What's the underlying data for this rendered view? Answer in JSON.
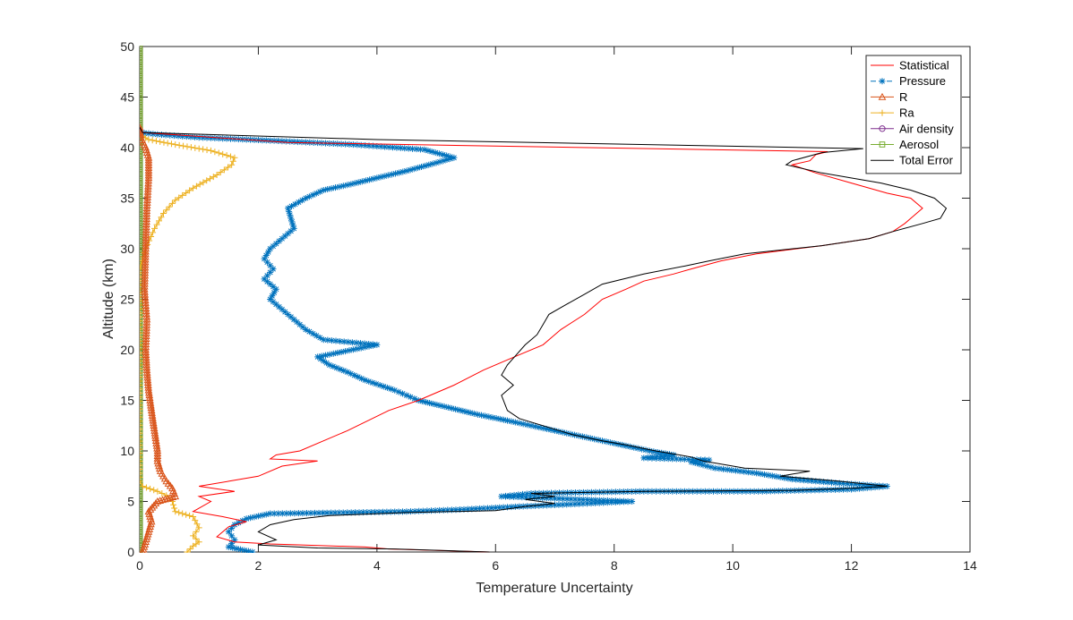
{
  "chart_data": {
    "type": "line",
    "xlabel": "Temperature Uncertainty",
    "ylabel": "Altitude (km)",
    "xlim": [
      0,
      14
    ],
    "ylim": [
      0,
      50
    ],
    "xticks": [
      "0",
      "2",
      "4",
      "6",
      "8",
      "10",
      "12",
      "14"
    ],
    "yticks": [
      "0",
      "5",
      "10",
      "15",
      "20",
      "25",
      "30",
      "35",
      "40",
      "45",
      "50"
    ],
    "grid": false,
    "legend_position": "top-right",
    "series": [
      {
        "name": "Statistical",
        "color": "#ff0000",
        "marker": "none",
        "dash": "solid",
        "points": [
          [
            5.9,
            0
          ],
          [
            4.2,
            0.3
          ],
          [
            3.8,
            0.5
          ],
          [
            2.2,
            0.8
          ],
          [
            1.6,
            1.0
          ],
          [
            1.3,
            1.5
          ],
          [
            1.5,
            2.5
          ],
          [
            1.8,
            3
          ],
          [
            1.4,
            3.5
          ],
          [
            0.9,
            4
          ],
          [
            1.2,
            5
          ],
          [
            1.0,
            5.5
          ],
          [
            1.6,
            6
          ],
          [
            1.0,
            6.5
          ],
          [
            1.5,
            7
          ],
          [
            2.0,
            7.5
          ],
          [
            2.4,
            8.5
          ],
          [
            3.0,
            9
          ],
          [
            2.2,
            9.2
          ],
          [
            2.3,
            9.6
          ],
          [
            2.7,
            10
          ],
          [
            3.1,
            11
          ],
          [
            3.5,
            12
          ],
          [
            4.2,
            14
          ],
          [
            4.7,
            15
          ],
          [
            5.3,
            16.5
          ],
          [
            5.8,
            18
          ],
          [
            6.4,
            19.5
          ],
          [
            6.8,
            20.5
          ],
          [
            7.1,
            22
          ],
          [
            7.5,
            23.5
          ],
          [
            7.8,
            25
          ],
          [
            8.2,
            26
          ],
          [
            8.5,
            26.8
          ],
          [
            9.0,
            27.5
          ],
          [
            9.3,
            28
          ],
          [
            9.8,
            28.8
          ],
          [
            10.4,
            29.5
          ],
          [
            11.5,
            30.3
          ],
          [
            12.3,
            31
          ],
          [
            12.7,
            31.7
          ],
          [
            12.9,
            32.5
          ],
          [
            13.0,
            33
          ],
          [
            13.2,
            34
          ],
          [
            13.0,
            35
          ],
          [
            12.6,
            35.5
          ],
          [
            12.0,
            36.5
          ],
          [
            11.4,
            37.5
          ],
          [
            11.0,
            38.3
          ],
          [
            11.3,
            38.7
          ],
          [
            11.4,
            39.3
          ],
          [
            11.6,
            39.6
          ],
          [
            2.5,
            40.5
          ],
          [
            0.05,
            41.5
          ],
          [
            0,
            42
          ]
        ]
      },
      {
        "name": "Pressure",
        "color": "#0072bd",
        "marker": "*",
        "dash": "dashed",
        "points": [
          [
            1.9,
            0
          ],
          [
            1.5,
            0.5
          ],
          [
            1.6,
            1.2
          ],
          [
            1.5,
            2
          ],
          [
            1.6,
            2.7
          ],
          [
            1.8,
            3.3
          ],
          [
            2.2,
            3.8
          ],
          [
            3.5,
            3.9
          ],
          [
            4.5,
            4
          ],
          [
            5.4,
            4.2
          ],
          [
            6.4,
            4.5
          ],
          [
            7.2,
            4.7
          ],
          [
            8.3,
            5
          ],
          [
            7.0,
            5.3
          ],
          [
            6.1,
            5.5
          ],
          [
            6.6,
            5.8
          ],
          [
            8.5,
            6
          ],
          [
            10.5,
            6
          ],
          [
            12.0,
            6.2
          ],
          [
            12.6,
            6.5
          ],
          [
            11.8,
            6.8
          ],
          [
            11.0,
            7.2
          ],
          [
            10.4,
            7.8
          ],
          [
            9.7,
            8.3
          ],
          [
            9.3,
            8.9
          ],
          [
            9.6,
            9.1
          ],
          [
            8.5,
            9.3
          ],
          [
            9.0,
            9.6
          ],
          [
            8.6,
            10
          ],
          [
            8.2,
            10.5
          ],
          [
            7.8,
            11
          ],
          [
            7.4,
            11.5
          ],
          [
            7.0,
            12
          ],
          [
            6.6,
            12.5
          ],
          [
            6.2,
            13
          ],
          [
            5.7,
            13.6
          ],
          [
            5.2,
            14.3
          ],
          [
            4.7,
            15
          ],
          [
            4.3,
            16
          ],
          [
            3.8,
            17
          ],
          [
            3.5,
            17.8
          ],
          [
            3.2,
            18.5
          ],
          [
            3.0,
            19.3
          ],
          [
            4.0,
            20.5
          ],
          [
            3.1,
            21
          ],
          [
            2.8,
            22
          ],
          [
            2.6,
            23
          ],
          [
            2.4,
            24
          ],
          [
            2.2,
            25
          ],
          [
            2.3,
            26
          ],
          [
            2.1,
            27
          ],
          [
            2.25,
            28
          ],
          [
            2.1,
            29
          ],
          [
            2.2,
            30
          ],
          [
            2.4,
            31
          ],
          [
            2.6,
            32
          ],
          [
            2.55,
            33
          ],
          [
            2.5,
            34
          ],
          [
            2.8,
            35
          ],
          [
            3.1,
            35.8
          ],
          [
            3.5,
            36.3
          ],
          [
            4.0,
            37
          ],
          [
            4.5,
            37.7
          ],
          [
            5.0,
            38.5
          ],
          [
            5.3,
            39
          ],
          [
            4.8,
            39.8
          ],
          [
            3.6,
            40.3
          ],
          [
            2.2,
            40.7
          ],
          [
            1.0,
            41
          ],
          [
            0.3,
            41.3
          ],
          [
            0,
            41.5
          ]
        ]
      },
      {
        "name": "R",
        "color": "#d95319",
        "marker": "triangle",
        "dash": "solid",
        "points": [
          [
            0.05,
            0
          ],
          [
            0.1,
            1
          ],
          [
            0.15,
            2
          ],
          [
            0.2,
            3
          ],
          [
            0.15,
            4
          ],
          [
            0.3,
            5
          ],
          [
            0.6,
            5.5
          ],
          [
            0.55,
            6.3
          ],
          [
            0.45,
            7
          ],
          [
            0.35,
            8
          ],
          [
            0.3,
            9
          ],
          [
            0.3,
            10
          ],
          [
            0.25,
            12
          ],
          [
            0.2,
            14
          ],
          [
            0.15,
            16
          ],
          [
            0.12,
            18
          ],
          [
            0.1,
            20
          ],
          [
            0.12,
            23
          ],
          [
            0.08,
            26
          ],
          [
            0.1,
            30
          ],
          [
            0.12,
            34
          ],
          [
            0.15,
            37
          ],
          [
            0.15,
            39
          ],
          [
            0.1,
            40
          ],
          [
            0.02,
            41
          ],
          [
            0,
            42
          ]
        ]
      },
      {
        "name": "Ra",
        "color": "#edb120",
        "marker": "+",
        "dash": "solid",
        "points": [
          [
            0.8,
            0
          ],
          [
            0.9,
            0.6
          ],
          [
            1.0,
            1
          ],
          [
            0.9,
            1.6
          ],
          [
            1.0,
            2.4
          ],
          [
            0.9,
            3.5
          ],
          [
            0.6,
            4
          ],
          [
            0.55,
            5
          ],
          [
            0.45,
            5.6
          ],
          [
            0.3,
            6
          ],
          [
            0.05,
            6.5
          ],
          [
            0,
            7
          ],
          [
            0,
            28
          ],
          [
            0.1,
            30
          ],
          [
            0.25,
            32
          ],
          [
            0.4,
            33.5
          ],
          [
            0.6,
            34.8
          ],
          [
            0.9,
            36
          ],
          [
            1.3,
            37.3
          ],
          [
            1.55,
            38.3
          ],
          [
            1.6,
            39
          ],
          [
            1.2,
            39.7
          ],
          [
            0.6,
            40.3
          ],
          [
            0.15,
            40.8
          ],
          [
            0,
            41.3
          ]
        ]
      },
      {
        "name": "Air density",
        "color": "#7e2f8e",
        "marker": "o",
        "dash": "solid",
        "points": [
          [
            0,
            0
          ],
          [
            0,
            50
          ]
        ]
      },
      {
        "name": "Aerosol",
        "color": "#77ac30",
        "marker": "square",
        "dash": "solid",
        "points": [
          [
            0,
            0
          ],
          [
            0,
            50
          ]
        ]
      },
      {
        "name": "Total Error",
        "color": "#000000",
        "marker": "none",
        "dash": "solid",
        "points": [
          [
            5.9,
            0
          ],
          [
            4.3,
            0.3
          ],
          [
            3.0,
            0.4
          ],
          [
            2.0,
            0.7
          ],
          [
            2.3,
            1.2
          ],
          [
            2.0,
            2
          ],
          [
            2.2,
            2.7
          ],
          [
            2.6,
            3.2
          ],
          [
            3.2,
            3.6
          ],
          [
            4.5,
            3.9
          ],
          [
            6.0,
            4.1
          ],
          [
            6.5,
            4.5
          ],
          [
            7.0,
            4.8
          ],
          [
            6.5,
            5.2
          ],
          [
            7.0,
            5.5
          ],
          [
            6.6,
            5.8
          ],
          [
            8.5,
            6
          ],
          [
            11.0,
            6.1
          ],
          [
            12.0,
            6.3
          ],
          [
            12.6,
            6.5
          ],
          [
            11.8,
            7
          ],
          [
            10.8,
            7.5
          ],
          [
            11.3,
            8
          ],
          [
            10.2,
            8.3
          ],
          [
            9.5,
            9
          ],
          [
            9.3,
            9.4
          ],
          [
            8.7,
            10
          ],
          [
            8.2,
            10.6
          ],
          [
            7.8,
            11
          ],
          [
            7.3,
            11.6
          ],
          [
            6.8,
            12.5
          ],
          [
            6.4,
            13.2
          ],
          [
            6.2,
            14
          ],
          [
            6.1,
            15.5
          ],
          [
            6.3,
            16.5
          ],
          [
            6.1,
            17.5
          ],
          [
            6.2,
            18.5
          ],
          [
            6.35,
            19.5
          ],
          [
            6.5,
            20.5
          ],
          [
            6.7,
            21.5
          ],
          [
            6.8,
            22.5
          ],
          [
            6.9,
            23.5
          ],
          [
            7.2,
            24.5
          ],
          [
            7.5,
            25.5
          ],
          [
            7.8,
            26.5
          ],
          [
            8.5,
            27.5
          ],
          [
            9.2,
            28.3
          ],
          [
            9.6,
            28.8
          ],
          [
            10.2,
            29.5
          ],
          [
            11.5,
            30.3
          ],
          [
            12.3,
            31
          ],
          [
            12.7,
            31.7
          ],
          [
            13.2,
            32.5
          ],
          [
            13.5,
            33
          ],
          [
            13.6,
            34
          ],
          [
            13.4,
            35
          ],
          [
            13.0,
            35.8
          ],
          [
            12.5,
            36.5
          ],
          [
            11.5,
            37.5
          ],
          [
            10.9,
            38.3
          ],
          [
            11.0,
            38.7
          ],
          [
            11.5,
            39.5
          ],
          [
            12.2,
            39.9
          ],
          [
            4.0,
            40.8
          ],
          [
            0.05,
            41.5
          ],
          [
            0,
            42
          ]
        ]
      }
    ]
  }
}
